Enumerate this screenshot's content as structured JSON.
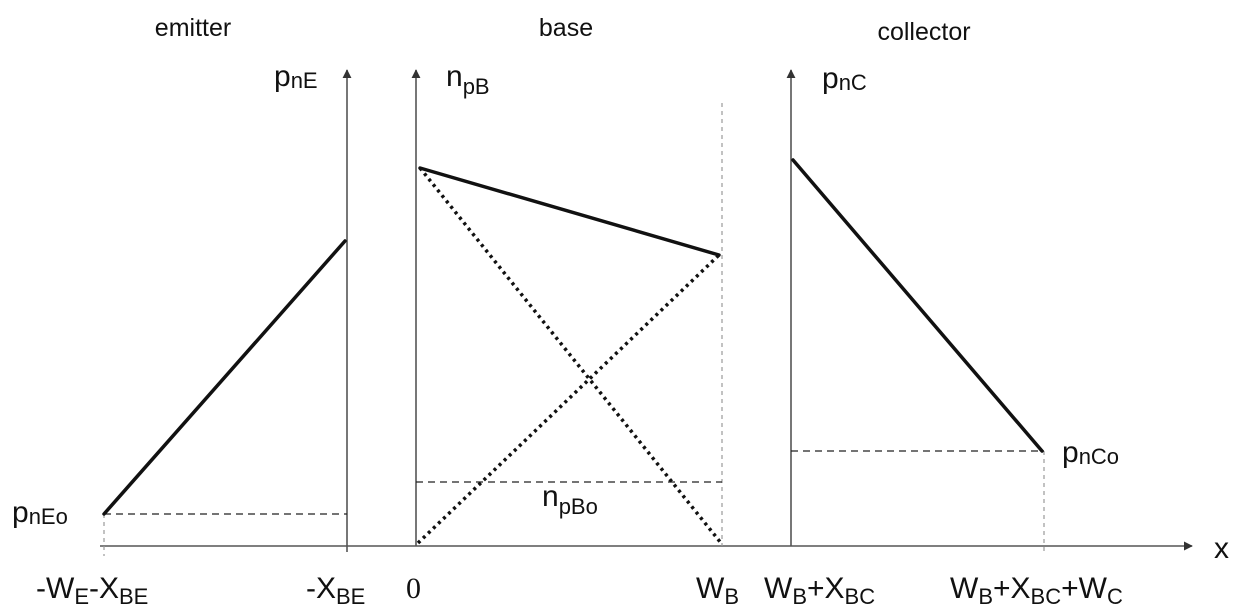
{
  "regions": {
    "emitter": "emitter",
    "base": "base",
    "collector": "collector"
  },
  "axes": {
    "emitter_y": {
      "main": "p",
      "sub": "nE"
    },
    "base_y": {
      "main": "n",
      "sub": "pB"
    },
    "collector_y": {
      "main": "p",
      "sub": "nC"
    },
    "x": "x"
  },
  "equilibrium_labels": {
    "emitter": {
      "main": "p",
      "sub": "nEo"
    },
    "base": {
      "main": "n",
      "sub": "pBo"
    },
    "collector": {
      "main": "p",
      "sub": "nCo"
    }
  },
  "x_ticks": {
    "emitter_start": {
      "a": "-W",
      "a_sub": "E",
      "b": "-X",
      "b_sub": "BE"
    },
    "emitter_end": {
      "a": "-X",
      "a_sub": "BE"
    },
    "base_start": "0",
    "base_end": {
      "a": "W",
      "a_sub": "B"
    },
    "collector_start": {
      "a": "W",
      "a_sub": "B",
      "b": "+X",
      "b_sub": "BC"
    },
    "collector_end": {
      "a": "W",
      "a_sub": "B",
      "b": "+X",
      "b_sub": "BC",
      "c": "+W",
      "c_sub": "C"
    }
  }
}
